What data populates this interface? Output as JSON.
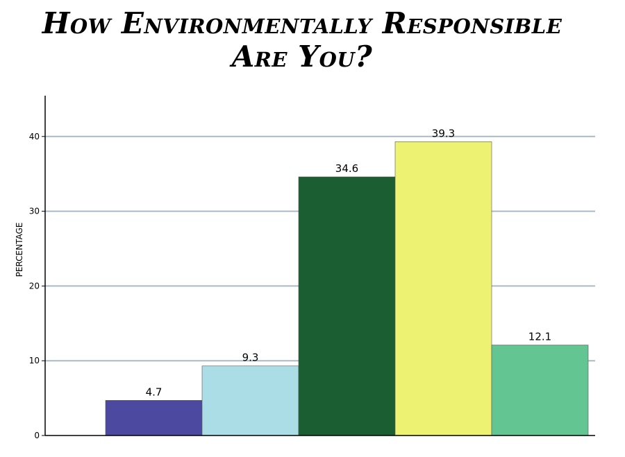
{
  "title_line1": "How Environmentally Responsible",
  "title_line2": "Are You?",
  "chart_data": {
    "type": "bar",
    "title": "How Environmentally Responsible Are You?",
    "ylabel": "PERCENTAGE",
    "xlabel": "",
    "ylim": [
      0,
      45
    ],
    "yticks": [
      0,
      10,
      20,
      30,
      40
    ],
    "grid": true,
    "values": [
      4.7,
      9.3,
      34.6,
      39.3,
      12.1
    ],
    "value_labels": [
      "4.7",
      "9.3",
      "34.6",
      "39.3",
      "12.1"
    ],
    "colors": [
      "#4b4aa0",
      "#abdde6",
      "#1b5e31",
      "#eef272",
      "#63c592"
    ]
  }
}
